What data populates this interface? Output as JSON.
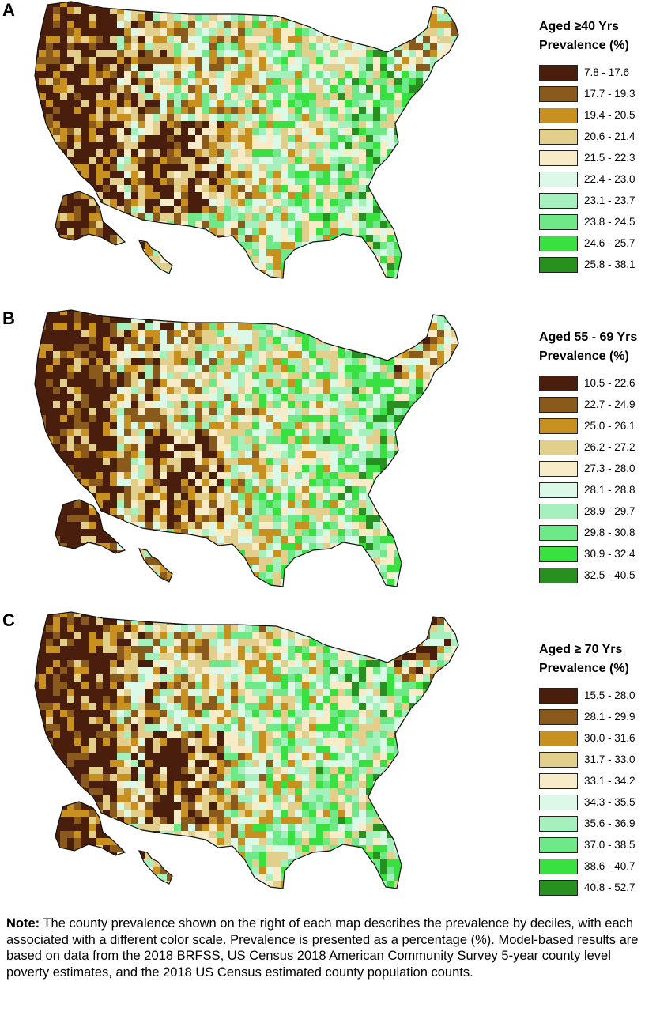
{
  "panels": [
    {
      "letter": "A",
      "legend_title_line1": "Aged ≥40 Yrs",
      "legend_title_line2": "Prevalence (%)",
      "ranges": [
        "7.8 - 17.6",
        "17.7 - 19.3",
        "19.4 - 20.5",
        "20.6 - 21.4",
        "21.5 - 22.3",
        "22.4 - 23.0",
        "23.1 - 23.7",
        "23.8 - 24.5",
        "24.6 - 25.7",
        "25.8 - 38.1"
      ]
    },
    {
      "letter": "B",
      "legend_title_line1": "Aged 55 - 69 Yrs",
      "legend_title_line2": "Prevalence (%)",
      "ranges": [
        "10.5 - 22.6",
        "22.7 - 24.9",
        "25.0 - 26.1",
        "26.2 - 27.2",
        "27.3 - 28.0",
        "28.1 - 28.8",
        "28.9 - 29.7",
        "29.8 - 30.8",
        "30.9 - 32.4",
        "32.5 - 40.5"
      ]
    },
    {
      "letter": "C",
      "legend_title_line1": "Aged ≥ 70 Yrs",
      "legend_title_line2": "Prevalence (%)",
      "ranges": [
        "15.5 - 28.0",
        "28.1 - 29.9",
        "30.0 - 31.6",
        "31.7 - 33.0",
        "33.1 - 34.2",
        "34.3 - 35.5",
        "35.6 - 36.9",
        "37.0 - 38.5",
        "38.6 - 40.7",
        "40.8 - 52.7"
      ]
    }
  ],
  "palette": [
    "#4a1e0c",
    "#8a5a1c",
    "#c8901f",
    "#e2cf8b",
    "#f8ecc8",
    "#dcf8e6",
    "#a6f0bd",
    "#6fe888",
    "#38e040",
    "#27901f"
  ],
  "note": {
    "label": "Note:",
    "text": "The county prevalence shown on the right of each map describes the prevalence by deciles, with each associated with a different color scale. Prevalence is presented as a percentage (%). Model-based results are based on data from the 2018 BRFSS, US Census 2018 American Community Survey 5-year county level poverty estimates, and the 2018 US Census estimated county population counts."
  }
}
